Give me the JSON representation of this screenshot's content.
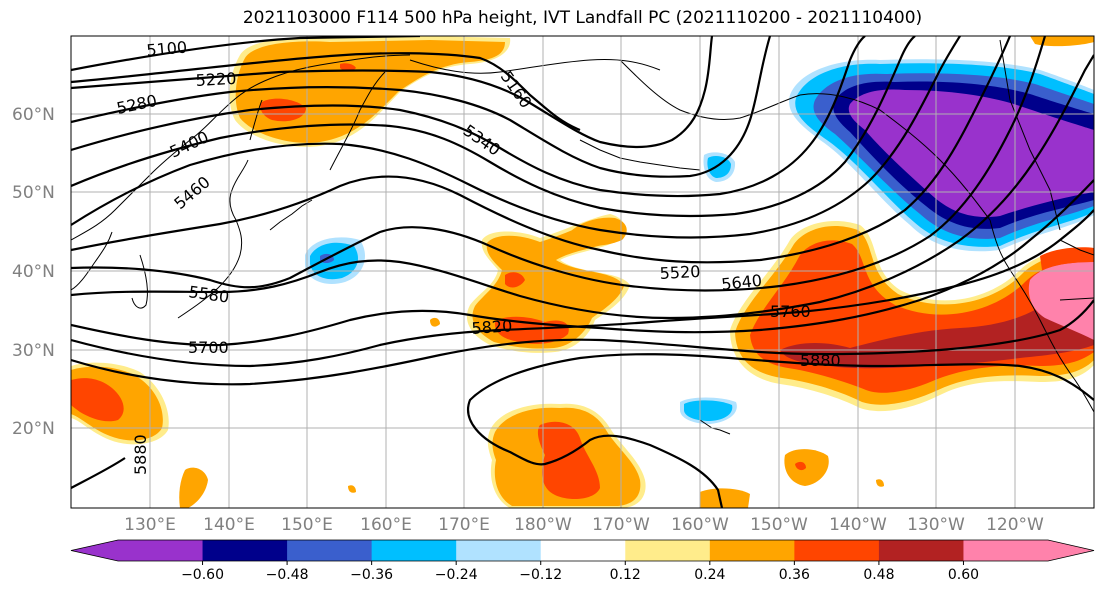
{
  "title": "2021103000 F114 500 hPa height, IVT Landfall PC (2021110200 - 2021110400)",
  "axes": {
    "lat_labels": [
      "60°N",
      "50°N",
      "40°N",
      "30°N",
      "20°N"
    ],
    "lon_labels": [
      "130°E",
      "140°E",
      "150°E",
      "160°E",
      "170°E",
      "180°W",
      "170°W",
      "160°W",
      "150°W",
      "140°W",
      "130°W",
      "120°W"
    ]
  },
  "contour_labels": {
    "c5100": "5100",
    "c5160": "5160",
    "c5220": "5220",
    "c5280": "5280",
    "c5340": "5340",
    "c5400": "5400",
    "c5460": "5460",
    "c5520": "5520",
    "c5580": "5580",
    "c5640": "5640",
    "c5700": "5700",
    "c5760": "5760",
    "c5820": "5820",
    "c5880a": "5880",
    "c5880b": "5880"
  },
  "colorbar": {
    "colors": [
      "#9932cc",
      "#00008b",
      "#3a5fcd",
      "#00bfff",
      "#b0e2ff",
      "#ffffff",
      "#ffec8b",
      "#ffa500",
      "#ff4500",
      "#b22222",
      "#ff82ab"
    ],
    "ticks": [
      "−0.60",
      "−0.48",
      "−0.36",
      "−0.24",
      "−0.12",
      "0.12",
      "0.24",
      "0.36",
      "0.48",
      "0.60"
    ]
  },
  "colors": {
    "grid": "#b0b0b0",
    "contour": "#000000",
    "axis_label": "#808080"
  }
}
